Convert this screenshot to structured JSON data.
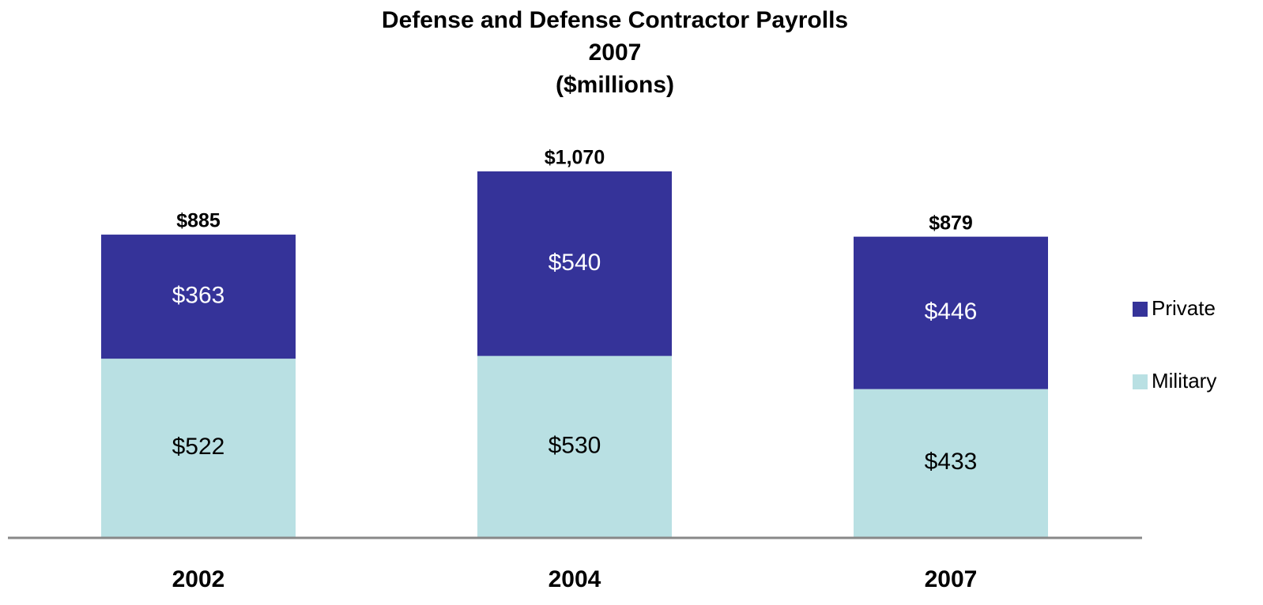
{
  "chart_data": {
    "type": "stacked_bar",
    "title": [
      "Defense and Defense Contractor Payrolls",
      "2007",
      "($millions)"
    ],
    "categories": [
      "2002",
      "2004",
      "2007"
    ],
    "series": [
      {
        "name": "Military",
        "color": "#b9e0e3",
        "values": [
          522,
          530,
          433
        ],
        "value_labels": [
          "$522",
          "$530",
          "$433"
        ]
      },
      {
        "name": "Private",
        "color": "#353399",
        "values": [
          363,
          540,
          446
        ],
        "value_labels": [
          "$363",
          "$540",
          "$446"
        ]
      }
    ],
    "totals": [
      885,
      1070,
      879
    ],
    "total_labels": [
      "$885",
      "$1,070",
      "$879"
    ],
    "legend": "right"
  }
}
